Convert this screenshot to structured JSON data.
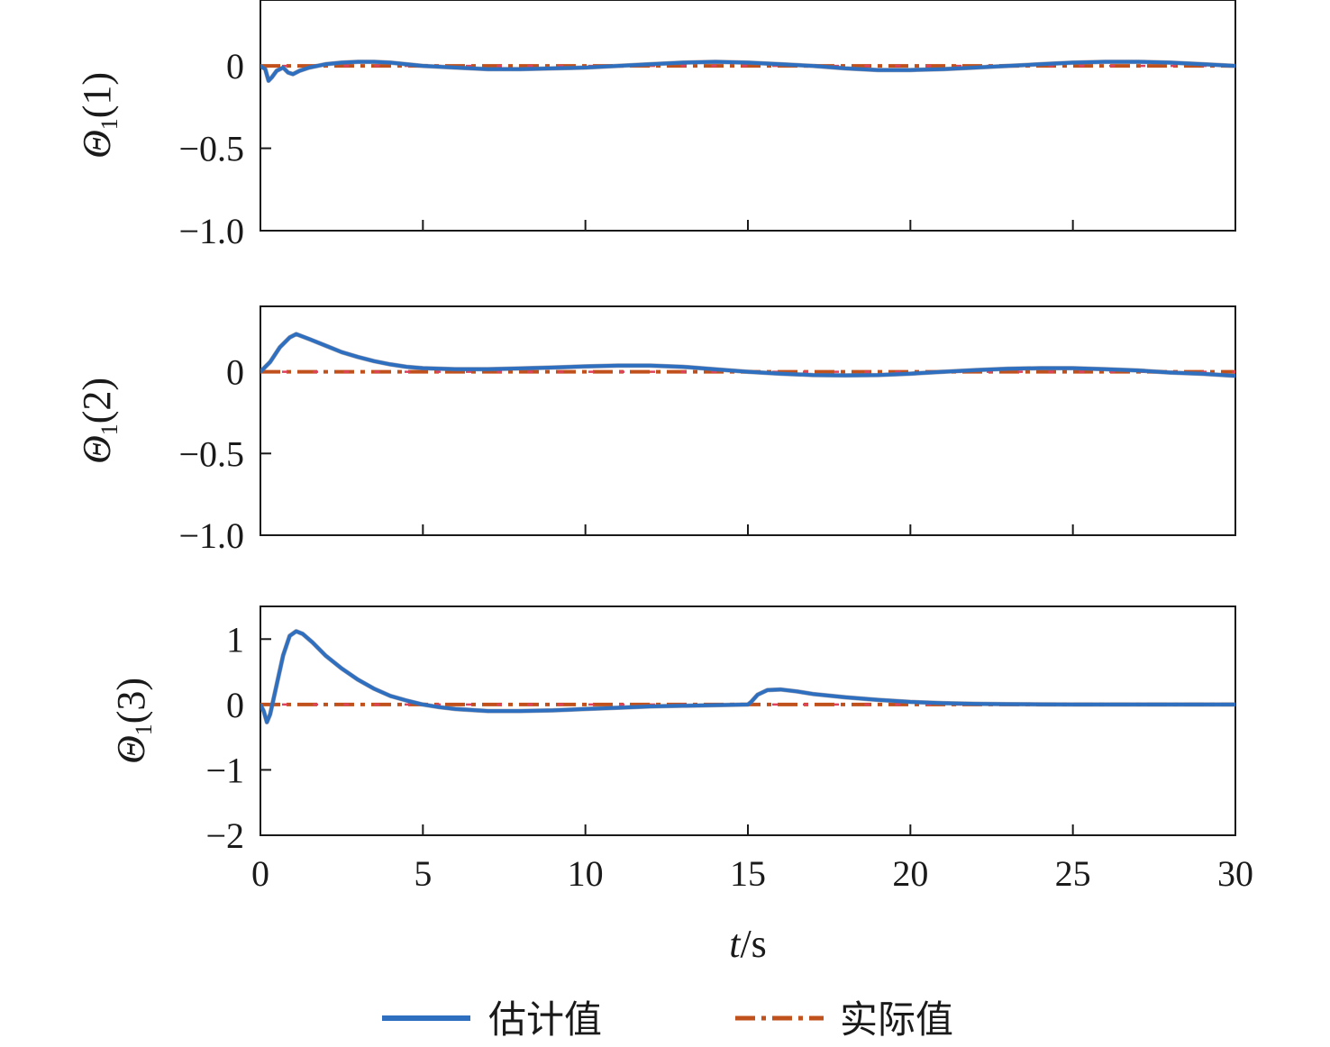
{
  "chart_data": [
    {
      "type": "line",
      "ylabel": {
        "symbol": "Θ",
        "sub": "1",
        "arg": "(1)"
      },
      "xlim": [
        0,
        30
      ],
      "ylim": [
        -1.0,
        0.4
      ],
      "yticks": [
        0,
        -0.5,
        -1.0
      ],
      "ytick_labels": [
        "0",
        "−0.5",
        "−1.0"
      ],
      "xticks": [
        0,
        5,
        10,
        15,
        20,
        25,
        30
      ],
      "series": [
        {
          "name": "估计值",
          "x": [
            0,
            0.15,
            0.25,
            0.35,
            0.5,
            0.7,
            0.85,
            1.0,
            1.2,
            1.5,
            2.0,
            2.5,
            3.0,
            3.5,
            4.0,
            5.0,
            6.0,
            7.0,
            8.0,
            9.0,
            10.0,
            11.0,
            12.0,
            13.0,
            14.0,
            15.0,
            16.0,
            17.0,
            18.0,
            19.0,
            20.0,
            21.0,
            22.0,
            23.0,
            24.0,
            25.0,
            26.0,
            27.0,
            28.0,
            29.0,
            30.0
          ],
          "y": [
            0,
            -0.02,
            -0.09,
            -0.07,
            -0.03,
            -0.01,
            -0.04,
            -0.05,
            -0.03,
            -0.01,
            0.01,
            0.02,
            0.025,
            0.025,
            0.02,
            0.0,
            -0.01,
            -0.02,
            -0.02,
            -0.015,
            -0.01,
            0.0,
            0.01,
            0.02,
            0.025,
            0.02,
            0.01,
            0.0,
            -0.015,
            -0.025,
            -0.025,
            -0.02,
            -0.01,
            0.0,
            0.01,
            0.02,
            0.025,
            0.025,
            0.02,
            0.01,
            0.0
          ]
        },
        {
          "name": "实际值",
          "x": [
            0,
            30
          ],
          "y": [
            0,
            0
          ]
        }
      ]
    },
    {
      "type": "line",
      "ylabel": {
        "symbol": "Θ",
        "sub": "1",
        "arg": "(2)"
      },
      "xlim": [
        0,
        30
      ],
      "ylim": [
        -1.0,
        0.4
      ],
      "yticks": [
        0,
        -0.5,
        -1.0
      ],
      "ytick_labels": [
        "0",
        "−0.5",
        "−1.0"
      ],
      "xticks": [
        0,
        5,
        10,
        15,
        20,
        25,
        30
      ],
      "series": [
        {
          "name": "估计值",
          "x": [
            0,
            0.3,
            0.6,
            0.9,
            1.1,
            1.5,
            2.0,
            2.5,
            3.0,
            3.5,
            4.0,
            4.5,
            5.0,
            6.0,
            7.0,
            8.0,
            9.0,
            10.0,
            11.0,
            12.0,
            13.0,
            14.0,
            15.0,
            16.0,
            17.0,
            18.0,
            19.0,
            20.0,
            21.0,
            22.0,
            23.0,
            24.0,
            25.0,
            26.0,
            27.0,
            28.0,
            29.0,
            30.0
          ],
          "y": [
            0,
            0.06,
            0.15,
            0.21,
            0.23,
            0.2,
            0.16,
            0.12,
            0.09,
            0.065,
            0.045,
            0.03,
            0.022,
            0.016,
            0.016,
            0.02,
            0.026,
            0.033,
            0.038,
            0.038,
            0.03,
            0.015,
            0.0,
            -0.012,
            -0.02,
            -0.022,
            -0.02,
            -0.012,
            0.0,
            0.01,
            0.018,
            0.022,
            0.022,
            0.016,
            0.008,
            -0.005,
            -0.013,
            -0.025
          ]
        },
        {
          "name": "实际值",
          "x": [
            0,
            30
          ],
          "y": [
            0,
            0
          ]
        }
      ]
    },
    {
      "type": "line",
      "ylabel": {
        "symbol": "Θ",
        "sub": "1",
        "arg": "(3)"
      },
      "xlim": [
        0,
        30
      ],
      "ylim": [
        -2,
        1.5
      ],
      "yticks": [
        1,
        0,
        -1,
        -2
      ],
      "ytick_labels": [
        "1",
        "0",
        "−1",
        "−2"
      ],
      "xticks": [
        0,
        5,
        10,
        15,
        20,
        25,
        30
      ],
      "xtick_labels": [
        "0",
        "5",
        "10",
        "15",
        "20",
        "25",
        "30"
      ],
      "xlabel": {
        "italic": "t",
        "rest": "/s"
      },
      "series": [
        {
          "name": "估计值",
          "x": [
            0,
            0.1,
            0.2,
            0.3,
            0.5,
            0.7,
            0.9,
            1.1,
            1.3,
            1.6,
            2.0,
            2.5,
            3.0,
            3.5,
            4.0,
            4.5,
            5.0,
            5.5,
            6.0,
            7.0,
            8.0,
            9.0,
            10.0,
            11.0,
            12.0,
            13.0,
            14.0,
            15.0,
            15.1,
            15.3,
            15.6,
            16.0,
            16.5,
            17.0,
            18.0,
            19.0,
            20.0,
            21.0,
            22.0,
            23.0,
            24.0,
            25.0,
            26.0,
            27.0,
            28.0,
            29.0,
            30.0
          ],
          "y": [
            0,
            -0.1,
            -0.27,
            -0.15,
            0.3,
            0.75,
            1.05,
            1.12,
            1.08,
            0.95,
            0.75,
            0.55,
            0.38,
            0.24,
            0.13,
            0.06,
            0.0,
            -0.04,
            -0.07,
            -0.1,
            -0.1,
            -0.09,
            -0.07,
            -0.05,
            -0.03,
            -0.02,
            -0.01,
            0.0,
            0.04,
            0.15,
            0.22,
            0.23,
            0.2,
            0.16,
            0.11,
            0.07,
            0.04,
            0.02,
            0.01,
            0.005,
            0.002,
            0.0,
            0.0,
            0.0,
            0.0,
            0.0,
            0.0
          ]
        },
        {
          "name": "实际值",
          "x": [
            0,
            30
          ],
          "y": [
            0,
            0
          ]
        }
      ]
    }
  ],
  "legend": {
    "placement": "bottom",
    "items": [
      {
        "label": "估计值",
        "color": "#2e6fc0",
        "style": "solid"
      },
      {
        "label": "实际值",
        "color": "#c0501c",
        "style": "dash-dot"
      }
    ]
  },
  "colors": {
    "estimate": "#2e6fc0",
    "estimate_shadow": "#7a6f7c",
    "actual": "#c0501c",
    "actual_accent": "#e0415c",
    "axis": "#1a1a1a"
  }
}
